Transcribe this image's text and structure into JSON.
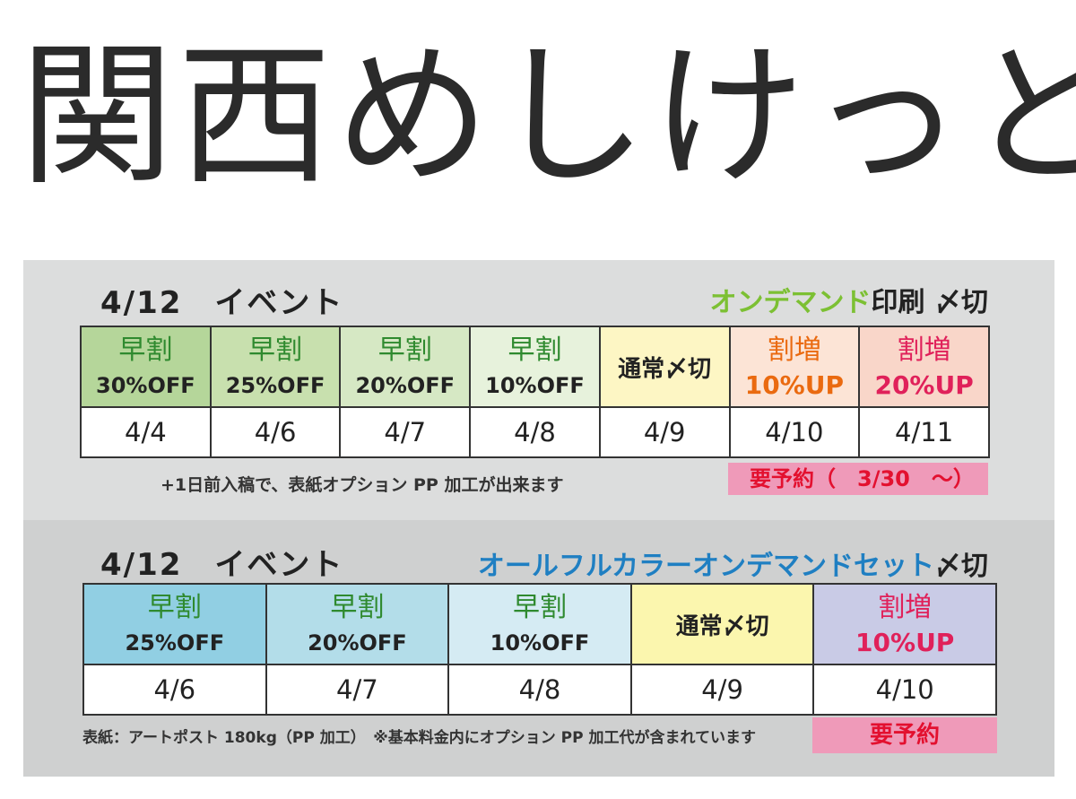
{
  "title": "関西めしけっと",
  "panels": [
    {
      "event": "4/12　イベント",
      "type_accent": "オンデマンド",
      "type_rest": "印刷 〆切",
      "headers": [
        {
          "top": "早割",
          "bottom": "30%OFF",
          "bg": "#b5d69a"
        },
        {
          "top": "早割",
          "bottom": "25%OFF",
          "bg": "#c8e0ae"
        },
        {
          "top": "早割",
          "bottom": "20%OFF",
          "bg": "#d6e8c4"
        },
        {
          "top": "早割",
          "bottom": "10%OFF",
          "bg": "#e7f2dc"
        },
        {
          "single": "通常〆切",
          "bg": "#fdf6c4"
        },
        {
          "top": "割増",
          "bottom": "10%UP",
          "bg": "#fce4d6"
        },
        {
          "top": "割増",
          "bottom": "20%UP",
          "bg": "#f9d6c9"
        }
      ],
      "dates": [
        "4/4",
        "4/6",
        "4/7",
        "4/8",
        "4/9",
        "4/10",
        "4/11"
      ],
      "note": "+1日前入稿で、表紙オプション PP 加工が出来ます",
      "reserve": "要予約（　3/30　～）"
    },
    {
      "event": "4/12　イベント",
      "type_accent": "オールフルカラーオンデマンドセット",
      "type_rest": "〆切",
      "headers": [
        {
          "top": "早割",
          "bottom": "25%OFF",
          "bg": "#91cfe3"
        },
        {
          "top": "早割",
          "bottom": "20%OFF",
          "bg": "#b3dde9"
        },
        {
          "top": "早割",
          "bottom": "10%OFF",
          "bg": "#d5ebf3"
        },
        {
          "single": "通常〆切",
          "bg": "#fbf6ae"
        },
        {
          "top": "割増",
          "bottom": "10%UP",
          "bg": "#c9cbe6"
        }
      ],
      "dates": [
        "4/6",
        "4/7",
        "4/8",
        "4/9",
        "4/10"
      ],
      "note": "表紙：アートポスト 180kg（PP 加工）　※基本料金内にオプション PP 加工代が含まれています",
      "reserve": "要予約"
    }
  ],
  "colors": {
    "early_text": "#2f8a2f",
    "surcharge10_text_panel1": "#ea6a10",
    "surcharge20_text": "#e0215a",
    "reserve_bg": "#ef9ab9",
    "reserve_text": "#e3102f"
  }
}
